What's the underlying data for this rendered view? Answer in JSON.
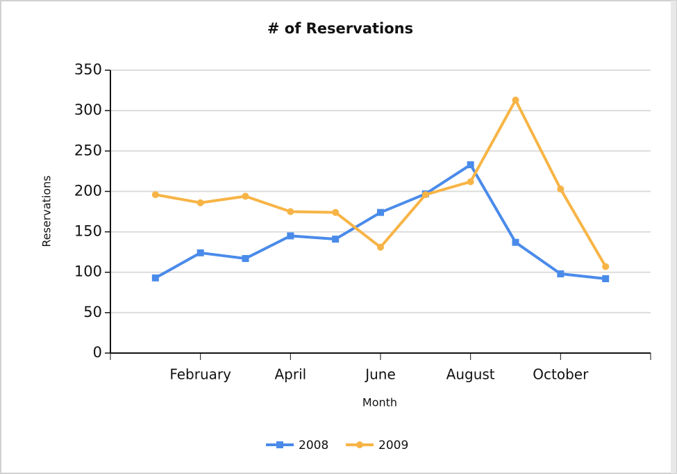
{
  "chart_data": {
    "type": "line",
    "title": "# of Reservations",
    "x_label": "Month",
    "y_label": "Reservations",
    "categories": [
      null,
      "February",
      null,
      "April",
      null,
      "June",
      null,
      "August",
      null,
      "October",
      null
    ],
    "series": [
      {
        "name": "2008",
        "color": "#4a8bea",
        "marker": "square",
        "values": [
          93,
          124,
          117,
          145,
          141,
          174,
          197,
          233,
          137,
          98,
          92
        ]
      },
      {
        "name": "2009",
        "color": "#f7b446",
        "marker": "circle",
        "values": [
          196,
          186,
          194,
          175,
          174,
          131,
          196,
          212,
          313,
          203,
          107
        ]
      }
    ],
    "ylim": [
      0,
      350
    ],
    "yticks": [
      0,
      50,
      100,
      150,
      200,
      250,
      300,
      350
    ],
    "grid": true,
    "legend": "bottom"
  }
}
